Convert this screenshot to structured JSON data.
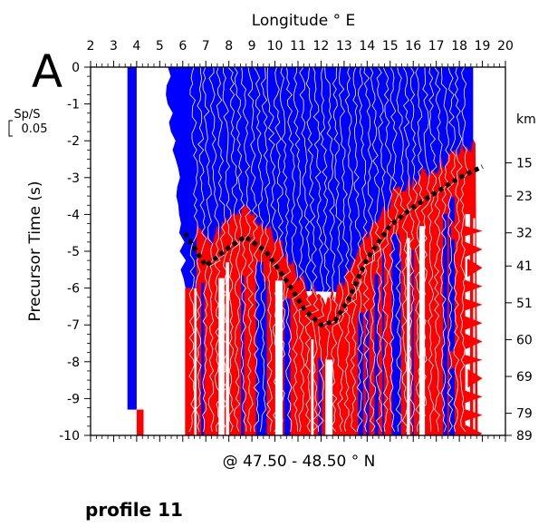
{
  "chart_data": {
    "type": "heatmap",
    "panel_label": "A",
    "top_axis_label": "Longitude ° E",
    "left_axis_label": "Precursor Time (s)",
    "bottom_label": "@ 47.50 - 48.50 ° N",
    "right_axis_unit": "km",
    "scale_bar_label": "Sp/S",
    "scale_bar_value": "0.05",
    "x_range": [
      2,
      20
    ],
    "y_range": [
      -10,
      0
    ],
    "x_ticks": [
      2,
      3,
      4,
      5,
      6,
      7,
      8,
      9,
      10,
      11,
      12,
      13,
      14,
      15,
      16,
      17,
      18,
      19,
      20
    ],
    "y_ticks": [
      0,
      -1,
      -2,
      -3,
      -4,
      -5,
      -6,
      -7,
      -8,
      -9,
      -10
    ],
    "depth_ticks": [
      {
        "time": -1.4,
        "label": "km"
      },
      {
        "time": -2.6,
        "label": "15"
      },
      {
        "time": -3.5,
        "label": "23"
      },
      {
        "time": -4.5,
        "label": "32"
      },
      {
        "time": -5.4,
        "label": "41"
      },
      {
        "time": -6.4,
        "label": "51"
      },
      {
        "time": -7.4,
        "label": "60"
      },
      {
        "time": -8.4,
        "label": "69"
      },
      {
        "time": -9.4,
        "label": "79"
      },
      {
        "time": -10.0,
        "label": "89"
      }
    ],
    "colors": {
      "positive": "#ff0000",
      "negative": "#0000ff",
      "trace": "#ffffff",
      "interpreted_line": "#000000"
    },
    "interpreted_boundary": [
      {
        "lon": 6.1,
        "t": -4.5
      },
      {
        "lon": 7.0,
        "t": -5.4
      },
      {
        "lon": 8.0,
        "t": -4.9
      },
      {
        "lon": 8.7,
        "t": -4.6
      },
      {
        "lon": 9.6,
        "t": -5.0
      },
      {
        "lon": 10.5,
        "t": -5.8
      },
      {
        "lon": 11.3,
        "t": -6.6
      },
      {
        "lon": 12.0,
        "t": -7.0
      },
      {
        "lon": 12.6,
        "t": -6.9
      },
      {
        "lon": 13.2,
        "t": -6.3
      },
      {
        "lon": 14.0,
        "t": -5.2
      },
      {
        "lon": 15.0,
        "t": -4.3
      },
      {
        "lon": 16.0,
        "t": -3.8
      },
      {
        "lon": 17.0,
        "t": -3.4
      },
      {
        "lon": 18.0,
        "t": -3.0
      },
      {
        "lon": 19.0,
        "t": -2.7
      }
    ],
    "profile_zones": [
      {
        "lon_start": 3.6,
        "lon_end": 4.0,
        "sign": "negative",
        "t_start": 0,
        "t_end": -9.3
      },
      {
        "lon_start": 4.0,
        "lon_end": 4.3,
        "sign": "positive",
        "t_start": -9.3,
        "t_end": -10
      },
      {
        "lon_start": 6.0,
        "lon_end": 18.6,
        "sign": "negative",
        "t_start": 0,
        "t_end": -4.0
      },
      {
        "lon_start": 6.5,
        "lon_end": 18.8,
        "sign": "positive",
        "t_start": -4.0,
        "t_end": -10
      }
    ]
  },
  "caption": "profile 11"
}
